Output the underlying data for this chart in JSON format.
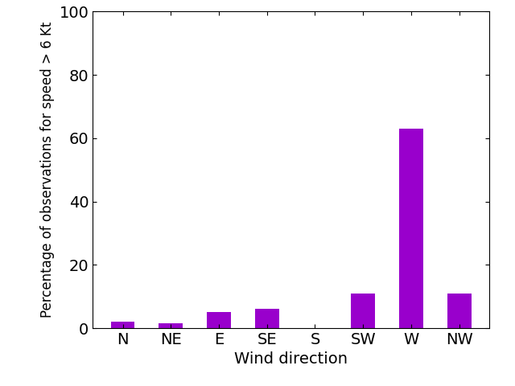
{
  "categories": [
    "N",
    "NE",
    "E",
    "SE",
    "S",
    "SW",
    "W",
    "NW"
  ],
  "values": [
    2,
    1.5,
    5,
    6,
    0,
    11,
    63,
    11
  ],
  "bar_color": "#9900CC",
  "xlabel": "Wind direction",
  "ylabel": "Percentage of observations for speed > 6 Kt",
  "ylim": [
    0,
    100
  ],
  "yticks": [
    0,
    20,
    40,
    60,
    80,
    100
  ],
  "bar_width": 0.5,
  "figsize": [
    6.4,
    4.8
  ],
  "dpi": 100,
  "tick_fontsize": 14,
  "label_fontsize": 14,
  "ylabel_fontsize": 12
}
